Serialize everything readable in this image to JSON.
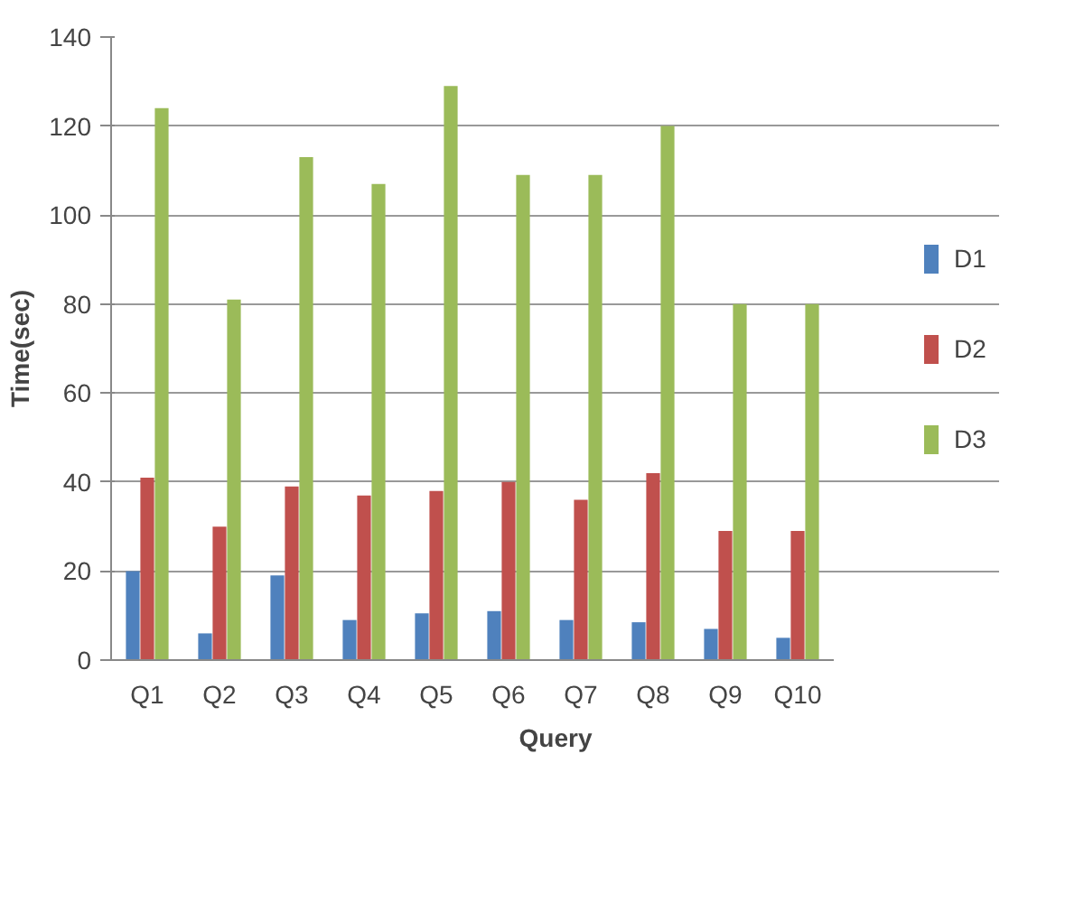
{
  "chart_data": {
    "type": "bar",
    "xlabel": "Query",
    "ylabel": "Time(sec)",
    "categories": [
      "Q1",
      "Q2",
      "Q3",
      "Q4",
      "Q5",
      "Q6",
      "Q7",
      "Q8",
      "Q9",
      "Q10"
    ],
    "series": [
      {
        "name": "D1",
        "color": "#4f81bd",
        "values": [
          20,
          6,
          19,
          9,
          10.5,
          11,
          9,
          8.5,
          7,
          5
        ]
      },
      {
        "name": "D2",
        "color": "#c0504d",
        "values": [
          41,
          30,
          39,
          37,
          38,
          40,
          36,
          42,
          29,
          29
        ]
      },
      {
        "name": "D3",
        "color": "#9bbb59",
        "values": [
          124,
          81,
          113,
          107,
          129,
          109,
          109,
          120,
          80,
          80
        ]
      }
    ],
    "ylim": [
      0,
      140
    ],
    "yticks": [
      0,
      20,
      40,
      60,
      80,
      100,
      120,
      140
    ],
    "grid": "y",
    "legend": "right"
  }
}
